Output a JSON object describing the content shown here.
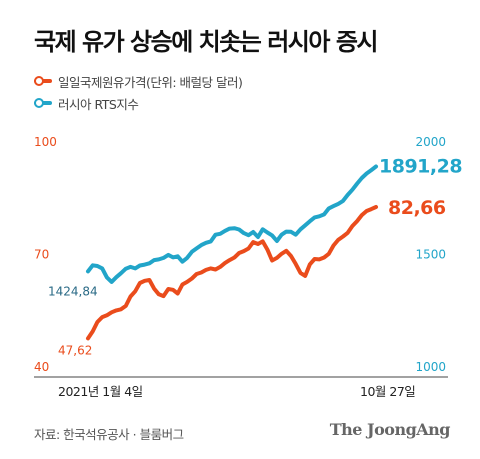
{
  "title": "국제 유가 상승에 치솟는 러시아 증시",
  "legend": [
    {
      "label": "일일국제원유가격(단위: 배럴당 달러)",
      "color": "#ea4c1c"
    },
    {
      "label": "러시아 RTS지수",
      "color": "#22a5c9"
    }
  ],
  "source": "자료: 한국석유공사 · 블룸버그",
  "publisher": "The JoongAng",
  "chart_data": {
    "type": "line",
    "x_start_label": "2021년 1월 4일",
    "x_end_label": "10월 27일",
    "left_axis": {
      "ticks": [
        "100",
        "70",
        "40"
      ],
      "range": [
        40,
        100
      ],
      "color": "#ea4c1c"
    },
    "right_axis": {
      "ticks": [
        "2000",
        "1500",
        "1000"
      ],
      "range": [
        1000,
        2000
      ],
      "color": "#22a5c9"
    },
    "series": [
      {
        "name": "일일국제원유가격(단위: 배럴당 달러)",
        "axis": "left",
        "color": "#ea4c1c",
        "start_label": "47,62",
        "end_label": "82,66",
        "values": [
          47.62,
          49.5,
          52.0,
          53.3,
          53.8,
          54.6,
          55.1,
          55.4,
          56.3,
          58.8,
          60.2,
          62.4,
          63.0,
          63.2,
          60.9,
          59.4,
          58.9,
          60.8,
          60.6,
          59.6,
          62.0,
          62.7,
          63.6,
          64.8,
          65.2,
          65.9,
          66.3,
          66.0,
          66.7,
          67.7,
          68.5,
          69.2,
          70.4,
          70.9,
          71.6,
          73.3,
          72.8,
          73.5,
          71.3,
          68.4,
          69.1,
          70.2,
          71.0,
          69.6,
          67.5,
          65.1,
          64.3,
          67.4,
          68.8,
          68.7,
          69.2,
          70.2,
          72.4,
          73.9,
          74.8,
          75.8,
          77.6,
          78.9,
          80.5,
          81.6,
          82.1,
          82.66
        ]
      },
      {
        "name": "러시아 RTS지수",
        "axis": "right",
        "color": "#22a5c9",
        "start_label": "1424,84",
        "end_label": "1891,28",
        "values": [
          1424.84,
          1452,
          1449,
          1438,
          1398,
          1378,
          1399,
          1417,
          1437,
          1445,
          1438,
          1451,
          1455,
          1461,
          1475,
          1478,
          1485,
          1498,
          1487,
          1492,
          1468,
          1485,
          1512,
          1527,
          1542,
          1552,
          1558,
          1588,
          1592,
          1605,
          1615,
          1617,
          1611,
          1595,
          1586,
          1600,
          1578,
          1612,
          1598,
          1585,
          1560,
          1588,
          1602,
          1601,
          1588,
          1612,
          1630,
          1648,
          1665,
          1670,
          1678,
          1705,
          1715,
          1725,
          1738,
          1765,
          1788,
          1815,
          1840,
          1860,
          1875,
          1891.28
        ]
      }
    ]
  }
}
